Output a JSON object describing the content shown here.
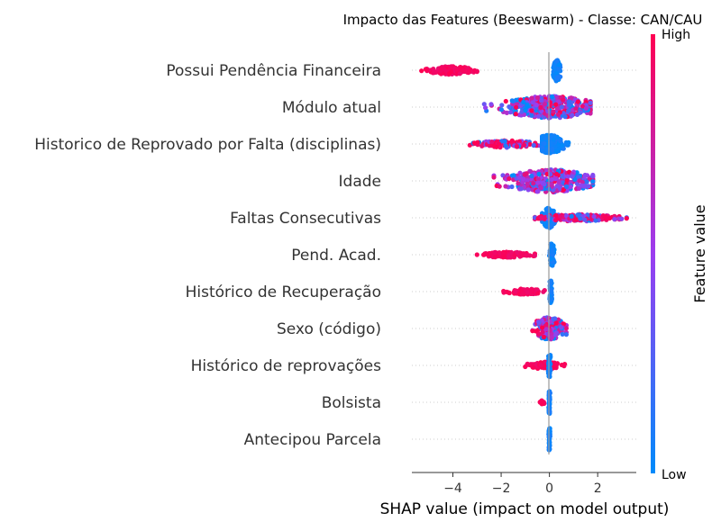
{
  "chart_data": {
    "type": "scatter",
    "subtype": "beeswarm",
    "title": "Impacto das Features (Beeswarm) - Classe: CAN/CAU",
    "xlabel": "SHAP value (impact on model output)",
    "xlim": [
      -5.7,
      3.6
    ],
    "xticks": [
      {
        "value": -4,
        "label": "−4"
      },
      {
        "value": -2,
        "label": "−2"
      },
      {
        "value": 0,
        "label": "0"
      },
      {
        "value": 2,
        "label": "2"
      }
    ],
    "colorbar": {
      "title": "Feature value",
      "high_label": "High",
      "low_label": "Low",
      "high_color": "#ff0052",
      "mid_color": "#9b3df0",
      "low_color": "#008bfb"
    },
    "grid": false,
    "features": [
      {
        "name": "Possui Pendência Financeira",
        "clusters": [
          {
            "min": -5.3,
            "max": -3.0,
            "center": -4.1,
            "spread": 0.12,
            "value": "high",
            "n": 140
          },
          {
            "min": 0.15,
            "max": 0.45,
            "center": 0.3,
            "spread": 0.4,
            "value": "low",
            "n": 80
          }
        ]
      },
      {
        "name": "Módulo atual",
        "clusters": [
          {
            "min": -2.7,
            "max": 1.7,
            "center": 0.0,
            "spread": 0.4,
            "value": "mixed",
            "n": 380
          }
        ]
      },
      {
        "name": "Historico de Reprovado por Falta (disciplinas)",
        "clusters": [
          {
            "min": -3.3,
            "max": -0.2,
            "center": -1.8,
            "spread": 0.1,
            "value": "mixed-high",
            "n": 120
          },
          {
            "min": -0.3,
            "max": 1.2,
            "center": 0.0,
            "spread": 0.3,
            "value": "low",
            "n": 150
          }
        ]
      },
      {
        "name": "Idade",
        "clusters": [
          {
            "min": -2.3,
            "max": 1.8,
            "center": 0.0,
            "spread": 0.42,
            "value": "mixed",
            "n": 360
          }
        ]
      },
      {
        "name": "Faltas Consecutivas",
        "clusters": [
          {
            "min": -0.3,
            "max": 0.3,
            "center": 0.0,
            "spread": 0.35,
            "value": "low",
            "n": 120
          },
          {
            "min": -0.6,
            "max": 3.2,
            "center": 1.2,
            "spread": 0.1,
            "value": "mixed-high",
            "n": 180
          }
        ]
      },
      {
        "name": "Pend. Acad.",
        "clusters": [
          {
            "min": -3.0,
            "max": -0.6,
            "center": -1.8,
            "spread": 0.08,
            "value": "high",
            "n": 120
          },
          {
            "min": 0.0,
            "max": 0.2,
            "center": 0.1,
            "spread": 0.42,
            "value": "low",
            "n": 90
          }
        ]
      },
      {
        "name": "Histórico de Recuperação",
        "clusters": [
          {
            "min": -1.9,
            "max": -0.2,
            "center": -1.0,
            "spread": 0.08,
            "value": "high",
            "n": 90
          },
          {
            "min": 0.0,
            "max": 0.1,
            "center": 0.05,
            "spread": 0.4,
            "value": "low",
            "n": 70
          }
        ]
      },
      {
        "name": "Sexo (código)",
        "clusters": [
          {
            "min": -0.7,
            "max": 0.7,
            "center": 0.0,
            "spread": 0.42,
            "value": "mixed",
            "n": 200
          }
        ]
      },
      {
        "name": "Histórico de reprovações",
        "clusters": [
          {
            "min": -1.0,
            "max": 0.7,
            "center": -0.2,
            "spread": 0.1,
            "value": "high",
            "n": 110
          },
          {
            "min": -0.05,
            "max": 0.05,
            "center": 0.0,
            "spread": 0.42,
            "value": "low",
            "n": 60
          }
        ]
      },
      {
        "name": "Bolsista",
        "clusters": [
          {
            "min": -0.45,
            "max": -0.2,
            "center": -0.3,
            "spread": 0.05,
            "value": "high",
            "n": 15
          },
          {
            "min": -0.03,
            "max": 0.03,
            "center": 0.0,
            "spread": 0.42,
            "value": "low",
            "n": 50
          }
        ]
      },
      {
        "name": "Antecipou Parcela",
        "clusters": [
          {
            "min": -0.03,
            "max": 0.03,
            "center": 0.0,
            "spread": 0.42,
            "value": "low",
            "n": 50
          }
        ]
      }
    ]
  }
}
